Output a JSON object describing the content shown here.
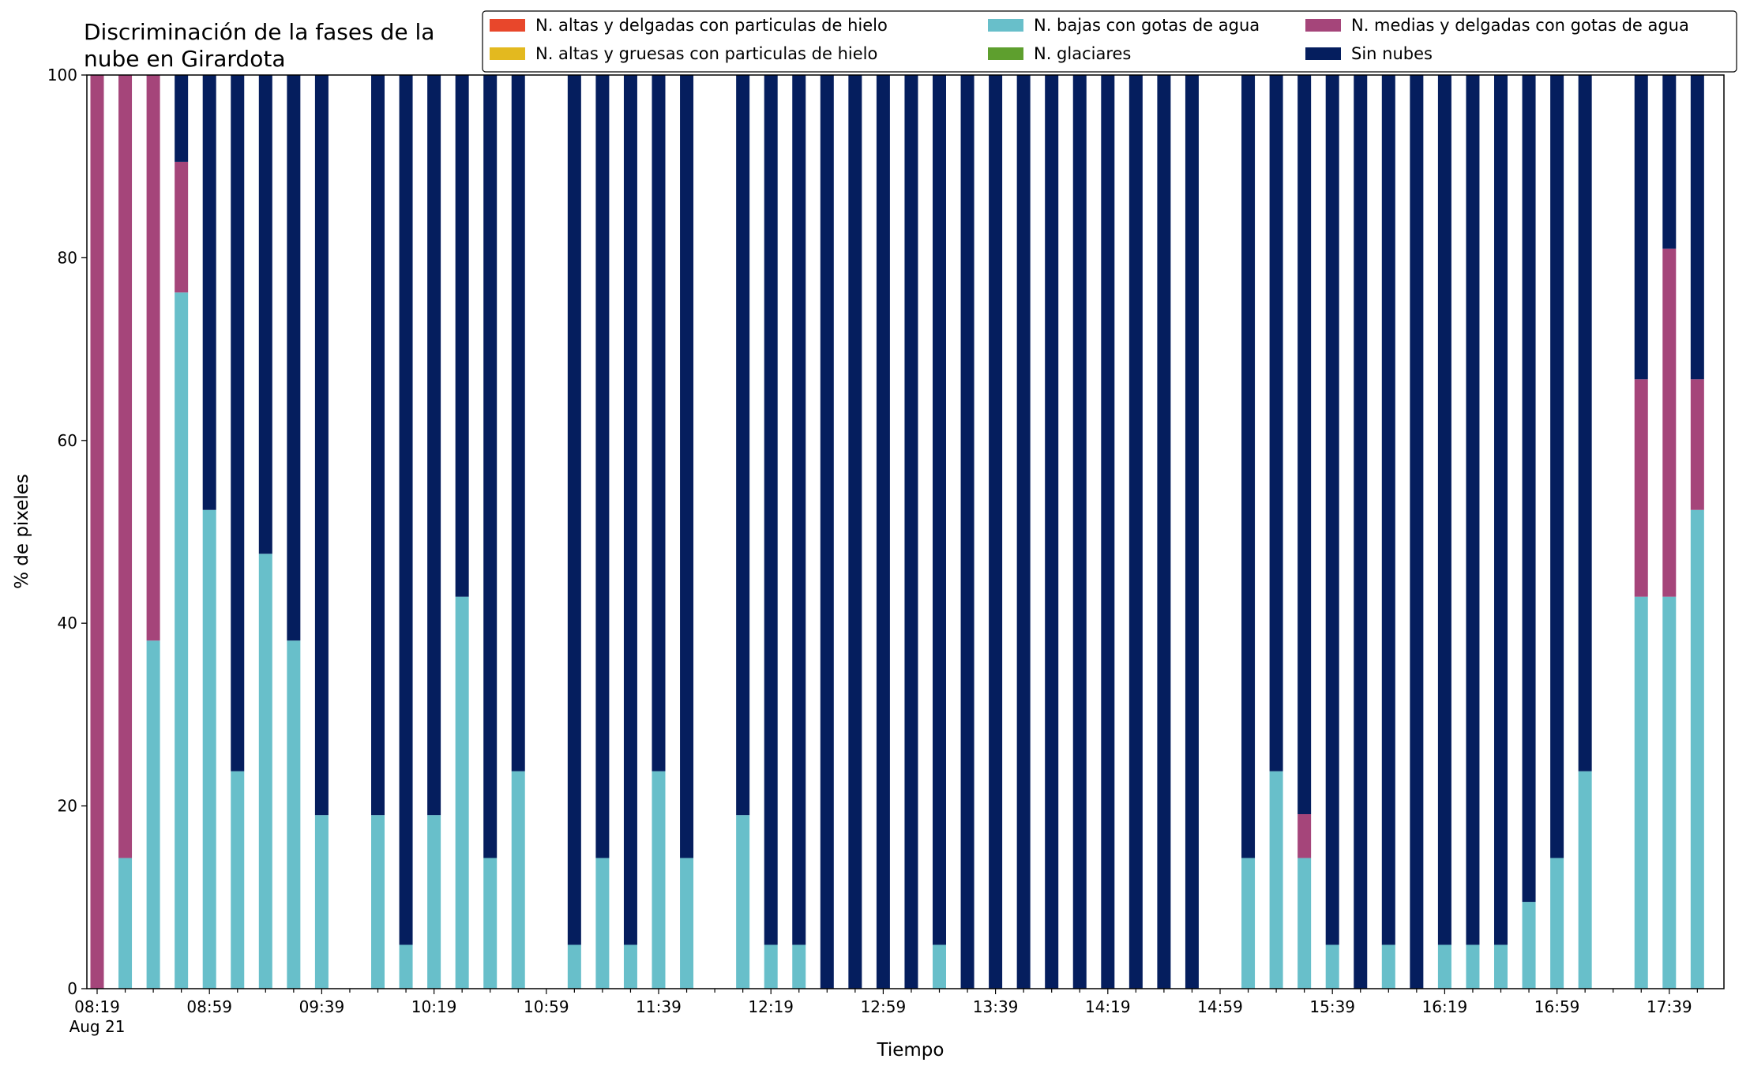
{
  "chart_data": {
    "type": "bar",
    "stacked": true,
    "title_lines": [
      "Discriminación de la fases de la",
      "nube en Girardota"
    ],
    "xlabel": "Tiempo",
    "ylabel": "% de pixeles",
    "ylim": [
      0,
      100
    ],
    "yticks": [
      0,
      20,
      40,
      60,
      80,
      100
    ],
    "x_date_note": "Aug 21",
    "xtick_labels": [
      "08:19",
      "08:59",
      "09:39",
      "10:19",
      "10:59",
      "11:39",
      "12:19",
      "12:59",
      "13:39",
      "14:19",
      "14:59",
      "15:39",
      "16:19",
      "16:59",
      "17:39"
    ],
    "legend_position": "top-right",
    "legend": [
      {
        "name": "N. altas y delgadas con particulas de hielo",
        "color": "#e8472b"
      },
      {
        "name": "N. altas y gruesas con particulas de hielo",
        "color": "#e3b91f"
      },
      {
        "name": "N. bajas con gotas de agua",
        "color": "#68bfca"
      },
      {
        "name": "N. glaciares",
        "color": "#5e9f2e"
      },
      {
        "name": "N. medias y delgadas con gotas de agua",
        "color": "#a5457a"
      },
      {
        "name": "Sin nubes",
        "color": "#051e5e"
      }
    ],
    "times": [
      "08:19",
      "08:29",
      "08:39",
      "08:49",
      "08:59",
      "09:09",
      "09:19",
      "09:29",
      "09:39",
      "09:49",
      "09:59",
      "10:09",
      "10:19",
      "10:29",
      "10:39",
      "10:49",
      "10:59",
      "11:09",
      "11:19",
      "11:29",
      "11:39",
      "11:49",
      "11:59",
      "12:09",
      "12:19",
      "12:29",
      "12:39",
      "12:49",
      "12:59",
      "13:09",
      "13:19",
      "13:29",
      "13:39",
      "13:49",
      "13:59",
      "14:09",
      "14:19",
      "14:29",
      "14:39",
      "14:49",
      "14:59",
      "15:09",
      "15:19",
      "15:29",
      "15:39",
      "15:49",
      "15:59",
      "16:09",
      "16:19",
      "16:29",
      "16:39",
      "16:49",
      "16:59",
      "17:09",
      "17:19",
      "17:29",
      "17:39",
      "17:49"
    ],
    "series": [
      {
        "name": "N. altas y delgadas con particulas de hielo",
        "color": "#e8472b",
        "values": [
          0,
          0,
          0,
          0,
          0,
          0,
          0,
          0,
          0,
          null,
          0,
          0,
          0,
          0,
          0,
          0,
          null,
          0,
          0,
          0,
          0,
          0,
          null,
          0,
          0,
          0,
          0,
          0,
          0,
          0,
          0,
          0,
          0,
          0,
          0,
          0,
          0,
          0,
          0,
          0,
          null,
          0,
          0,
          0,
          0,
          0,
          0,
          0,
          0,
          0,
          0,
          0,
          0,
          0,
          null,
          0,
          0,
          0
        ]
      },
      {
        "name": "N. altas y gruesas con particulas de hielo",
        "color": "#e3b91f",
        "values": [
          0,
          0,
          0,
          0,
          0,
          0,
          0,
          0,
          0,
          null,
          0,
          0,
          0,
          0,
          0,
          0,
          null,
          0,
          0,
          0,
          0,
          0,
          null,
          0,
          0,
          0,
          0,
          0,
          0,
          0,
          0,
          0,
          0,
          0,
          0,
          0,
          0,
          0,
          0,
          0,
          null,
          0,
          0,
          0,
          0,
          0,
          0,
          0,
          0,
          0,
          0,
          0,
          0,
          0,
          null,
          0,
          0,
          0
        ]
      },
      {
        "name": "N. bajas con gotas de agua",
        "color": "#68bfca",
        "values": [
          0,
          14.3,
          38.1,
          76.2,
          52.4,
          23.8,
          47.6,
          38.1,
          19.0,
          null,
          19.0,
          4.8,
          19.0,
          42.9,
          14.3,
          23.8,
          null,
          4.8,
          14.3,
          4.8,
          23.8,
          14.3,
          null,
          19.0,
          4.8,
          4.8,
          0,
          0,
          0,
          0,
          4.8,
          0,
          0,
          0,
          0,
          0,
          0,
          0,
          0,
          0,
          null,
          14.3,
          23.8,
          14.3,
          4.8,
          0,
          4.8,
          0,
          4.8,
          4.8,
          4.8,
          9.5,
          14.3,
          23.8,
          null,
          42.9,
          42.9,
          52.4
        ]
      },
      {
        "name": "N. glaciares",
        "color": "#5e9f2e",
        "values": [
          0,
          0,
          0,
          0,
          0,
          0,
          0,
          0,
          0,
          null,
          0,
          0,
          0,
          0,
          0,
          0,
          null,
          0,
          0,
          0,
          0,
          0,
          null,
          0,
          0,
          0,
          0,
          0,
          0,
          0,
          0,
          0,
          0,
          0,
          0,
          0,
          0,
          0,
          0,
          0,
          null,
          0,
          0,
          0,
          0,
          0,
          0,
          0,
          0,
          0,
          0,
          0,
          0,
          0,
          null,
          0,
          0,
          0
        ]
      },
      {
        "name": "N. medias y delgadas con gotas de agua",
        "color": "#a5457a",
        "values": [
          100,
          85.7,
          61.9,
          14.3,
          0,
          0,
          0,
          0,
          0,
          null,
          0,
          0,
          0,
          0,
          0,
          0,
          null,
          0,
          0,
          0,
          0,
          0,
          null,
          0,
          0,
          0,
          0,
          0,
          0,
          0,
          0,
          0,
          0,
          0,
          0,
          0,
          0,
          0,
          0,
          0,
          null,
          0,
          0,
          4.8,
          0,
          0,
          0,
          0,
          0,
          0,
          0,
          0,
          0,
          0,
          null,
          23.8,
          38.1,
          14.3
        ]
      },
      {
        "name": "Sin nubes",
        "color": "#051e5e",
        "values": [
          0,
          0,
          0,
          9.5,
          47.6,
          76.2,
          52.4,
          61.9,
          81.0,
          null,
          81.0,
          95.2,
          81.0,
          57.1,
          85.7,
          76.2,
          null,
          95.2,
          85.7,
          95.2,
          76.2,
          85.7,
          null,
          81.0,
          95.2,
          95.2,
          100,
          100,
          100,
          100,
          95.2,
          100,
          100,
          100,
          100,
          100,
          100,
          100,
          100,
          100,
          null,
          85.7,
          76.2,
          80.9,
          95.2,
          100,
          95.2,
          100,
          95.2,
          95.2,
          95.2,
          90.5,
          85.7,
          76.2,
          null,
          33.3,
          19.0,
          33.3
        ]
      }
    ]
  }
}
